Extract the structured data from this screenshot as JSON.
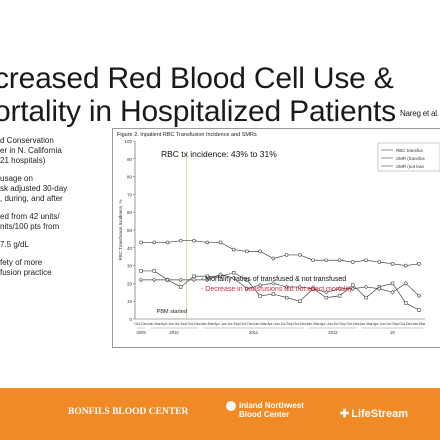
{
  "slide": {
    "title_line1": "creased Red Blood Cell Use &",
    "title_line2": "ortality in Hospitalized Patients",
    "citation": "Nareg    et al. JA",
    "bullets": [
      "d Conservation",
      "er in N. California",
      " 21 hospitals)",
      "usage on",
      "sk adjusted 30-day",
      ", during, and after",
      "ed from 42 units/",
      "nits/100 pts from",
      " 7.5 g/dL",
      "fety of more",
      "fusion practice"
    ]
  },
  "figure": {
    "title": "Figure 2. Inpatient RBC Transfusion Incidence and SMRs",
    "y_tick_labels": [
      "100",
      "90",
      "80",
      "70",
      "60",
      "50",
      "40",
      "30",
      "20",
      "10",
      "0"
    ],
    "annotation_top": "RBC tx incidence: 43% to 31%",
    "annotation_m1": "- Mortality ratios of transfused & not transfused",
    "annotation_m2": "- Decrease in transfusions did not affect mortality",
    "pbm_label": "PBM started",
    "legend": [
      "RBC transfus",
      "SMR (transfus",
      "SMR (not tran"
    ],
    "year_labels": [
      "2009",
      "2010",
      "2011",
      "2012",
      "20"
    ]
  },
  "footer": {
    "logo1": "BONFILS  BLOOD CENTER",
    "logo2_a": "Inland Northwest",
    "logo2_b": "Blood Center",
    "logo3": "LifeStream"
  },
  "colors": {
    "accent": "#f08a24",
    "highlight": "#d0264a",
    "pbm_line": "#c7d98a"
  },
  "chart_data": {
    "type": "line",
    "x": [
      "Oct-Dec",
      "Jan-Mar",
      "Apr-Jun",
      "Jul-Sep",
      "Oct-Dec",
      "Jan-Mar",
      "Apr-Jun",
      "Jul-Sep",
      "Oct-Dec",
      "Jan-Mar",
      "Apr-Jun",
      "Jul-Sep",
      "Oct-Dec",
      "Jan-Mar",
      "Apr-Jun",
      "Jul-Sep",
      "Oct-Dec",
      "Jan-Mar",
      "Apr-Jun",
      "Jul-Sep",
      "Oct-Dec",
      "Jan-Mar"
    ],
    "ylabel": "RBC Transfusion Incidence, %",
    "ylim": [
      0,
      100
    ],
    "series": [
      {
        "name": "RBC transfus",
        "marker": "circle",
        "values": [
          43,
          43,
          43,
          44,
          44,
          43,
          43,
          39,
          38,
          38,
          34,
          36,
          36,
          33,
          33,
          33,
          32,
          33,
          32,
          31,
          30,
          31
        ]
      },
      {
        "name": "SMR (transfus",
        "marker": "square",
        "values": [
          27,
          27,
          22,
          18,
          24,
          24,
          24,
          26,
          22,
          13,
          14,
          12,
          10,
          17,
          12,
          13,
          19,
          12,
          18,
          20,
          9,
          5
        ]
      },
      {
        "name": "SMR (not tran",
        "marker": "diamond",
        "values": [
          22,
          22,
          22,
          22,
          22,
          22,
          25,
          23,
          17,
          19,
          20,
          18,
          18,
          17,
          15,
          17,
          17,
          18,
          17,
          15,
          20,
          13
        ]
      }
    ]
  }
}
